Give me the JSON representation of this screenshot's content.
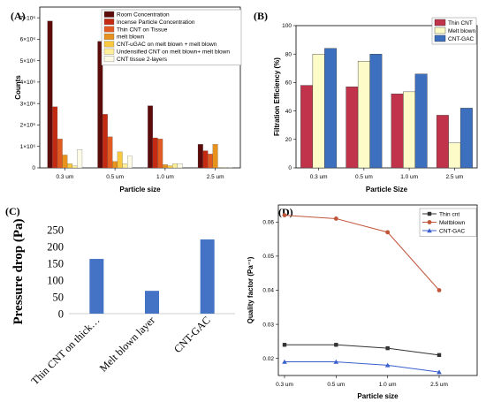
{
  "panels": {
    "a": "(A)",
    "b": "(B)",
    "c": "(C)",
    "d": "(D)"
  },
  "chart_data": [
    {
      "id": "A",
      "type": "bar",
      "xlabel": "Particle size",
      "ylabel": "Counts",
      "categories": [
        "0.3 um",
        "0.5 um",
        "1.0 um",
        "2.5 um"
      ],
      "ylim": [
        0,
        7500000
      ],
      "yticks": [
        0,
        1000000,
        2000000,
        3000000,
        4000000,
        5000000,
        6000000,
        7000000
      ],
      "yticklabels": [
        "0",
        "1×10⁶",
        "2×10⁶",
        "3×10⁶",
        "4×10⁶",
        "5×10⁶",
        "6×10⁶",
        "7×10⁶"
      ],
      "legend_position": "top-right",
      "series": [
        {
          "name": "Room Concentration",
          "color": "#5c0a0a",
          "values": [
            6850000,
            5900000,
            2900000,
            1100000
          ]
        },
        {
          "name": "Incense Particle Concentration",
          "color": "#c42a12",
          "values": [
            2850000,
            2500000,
            1400000,
            800000
          ]
        },
        {
          "name": "Thin CNT on Tissue",
          "color": "#e05a22",
          "values": [
            1350000,
            1450000,
            1350000,
            650000
          ]
        },
        {
          "name": "melt blown",
          "color": "#e8921e",
          "values": [
            600000,
            300000,
            150000,
            1100000
          ]
        },
        {
          "name": "CNT-uGAC on melt blown + melt blown",
          "color": "#f7c840",
          "values": [
            200000,
            750000,
            100000,
            20000
          ]
        },
        {
          "name": "Undensified CNT on melt blown+ melt blown",
          "color": "#ffef9a",
          "values": [
            100000,
            200000,
            200000,
            20000
          ]
        },
        {
          "name": "CNT tissue 2-layers",
          "color": "#fdfbe6",
          "values": [
            850000,
            550000,
            200000,
            30000
          ]
        }
      ]
    },
    {
      "id": "B",
      "type": "bar",
      "xlabel": "Particle Size",
      "ylabel": "Filtration Efficiency (%)",
      "categories": [
        "0.3 um",
        "0.5 um",
        "1.0 um",
        "2.5 um"
      ],
      "ylim": [
        0,
        100
      ],
      "yticks": [
        0,
        20,
        40,
        60,
        80,
        100
      ],
      "legend_position": "top-right",
      "series": [
        {
          "name": "Thin CNT",
          "color": "#c0334a",
          "values": [
            58,
            57,
            52,
            37
          ]
        },
        {
          "name": "Melt blown",
          "color": "#fdfcc8",
          "values": [
            80,
            75,
            53.5,
            17.5
          ]
        },
        {
          "name": "CNT-GAC",
          "color": "#3d6fbf",
          "values": [
            84,
            80,
            66,
            42
          ]
        }
      ]
    },
    {
      "id": "C",
      "type": "bar",
      "xlabel": "",
      "ylabel": "Pressure drop (Pa)",
      "categories": [
        "Thin CNT on thick…",
        "Melt blown layer",
        "CNT-GAC"
      ],
      "values": [
        163,
        68,
        221
      ],
      "color": "#4472c4",
      "ylim": [
        0,
        250
      ],
      "yticks": [
        0,
        50,
        100,
        150,
        200,
        250
      ]
    },
    {
      "id": "D",
      "type": "line",
      "xlabel": "Particle size",
      "ylabel": "Quality factor (Pa⁻¹)",
      "categories": [
        "0.3 um",
        "0.5 um",
        "1.0 um",
        "2.5 um"
      ],
      "ylim": [
        0.015,
        0.065
      ],
      "yticks": [
        0.02,
        0.03,
        0.04,
        0.05,
        0.06
      ],
      "yticklabels": [
        "0.02",
        "0.03",
        "0.04",
        "0.05",
        "0.06"
      ],
      "legend_position": "top-right",
      "series": [
        {
          "name": "Thin cnt",
          "color": "#333333",
          "marker": "square",
          "values": [
            0.024,
            0.024,
            0.023,
            0.021
          ]
        },
        {
          "name": "Meltblown",
          "color": "#c0553a",
          "marker": "circle",
          "values": [
            0.062,
            0.061,
            0.057,
            0.04
          ]
        },
        {
          "name": "CNT-GAC",
          "color": "#3a5fcd",
          "marker": "triangle",
          "values": [
            0.019,
            0.019,
            0.018,
            0.016
          ]
        }
      ]
    }
  ]
}
